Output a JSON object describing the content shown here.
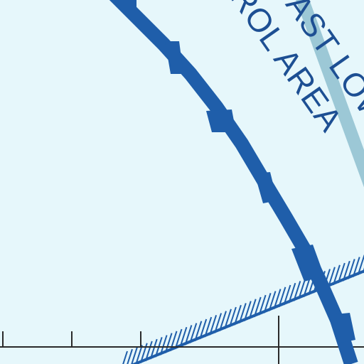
{
  "map": {
    "labels": {
      "line1": "COAST LOW",
      "line2": "NTROL AREA"
    },
    "colors": {
      "background": "#e6f7fb",
      "airspace_boundary": "#1f5eaa",
      "airway_hatch": "#1f5eaa",
      "label": "#1d4f93",
      "shoreline": "#9cc8d6",
      "graticule": "#2a2a2a"
    },
    "features": [
      "airspace-boundary-line",
      "airway-hatched-band",
      "shoreline-band",
      "latitude-graticule-ticks"
    ]
  }
}
